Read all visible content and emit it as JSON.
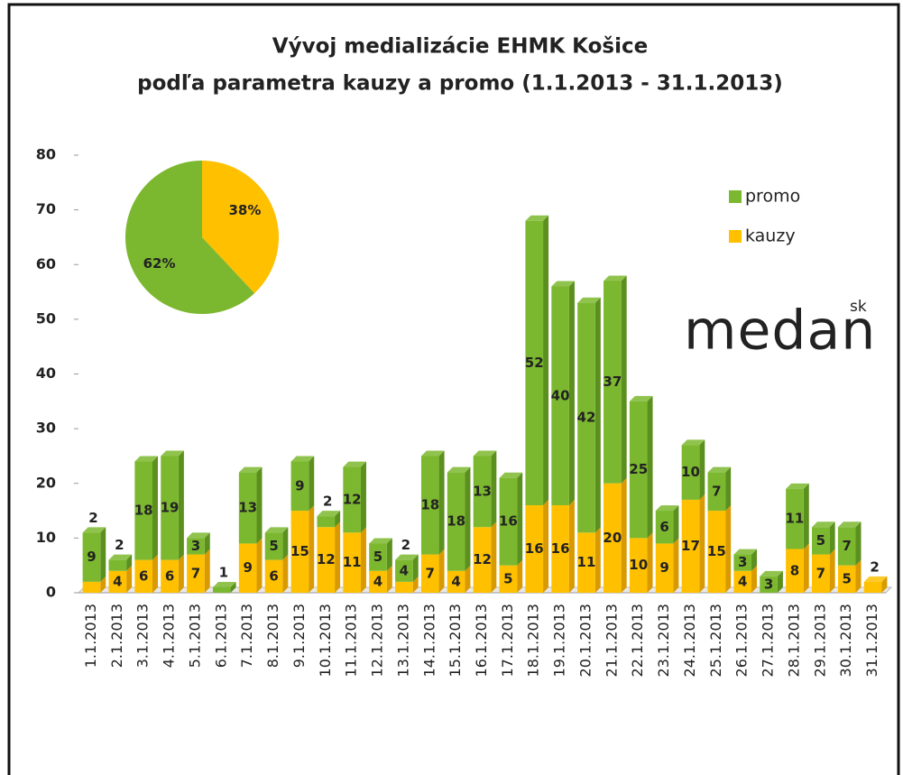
{
  "chart_data": [
    {
      "type": "stacked_bar",
      "title": "Vývoj medializácie EHMK Košice",
      "subtitle": "podľa parametra kauzy a promo (1.1.2013 - 31.1.2013)",
      "categories": [
        "1.1.2013",
        "2.1.2013",
        "3.1.2013",
        "4.1.2013",
        "5.1.2013",
        "6.1.2013",
        "7.1.2013",
        "8.1.2013",
        "9.1.2013",
        "10.1.2013",
        "11.1.2013",
        "12.1.2013",
        "13.1.2013",
        "14.1.2013",
        "15.1.2013",
        "16.1.2013",
        "17.1.2013",
        "18.1.2013",
        "19.1.2013",
        "20.1.2013",
        "21.1.2013",
        "22.1.2013",
        "23.1.2013",
        "24.1.2013",
        "25.1.2013",
        "26.1.2013",
        "27.1.2013",
        "28.1.2013",
        "29.1.2013",
        "30.1.2013",
        "31.1.2013"
      ],
      "series": [
        {
          "name": "kauzy",
          "color": "#ffc000",
          "side_color": "#d89a00",
          "values": [
            2,
            4,
            6,
            6,
            7,
            0,
            9,
            6,
            15,
            12,
            11,
            4,
            2,
            7,
            4,
            12,
            5,
            16,
            16,
            11,
            20,
            10,
            9,
            17,
            15,
            4,
            0,
            8,
            7,
            5,
            2
          ],
          "value_labels": [
            "2",
            "4",
            "6",
            "6",
            "7",
            null,
            "9",
            "6",
            "15",
            "12",
            "11",
            "4",
            "2",
            "7",
            "4",
            "12",
            "5",
            "16",
            "16",
            "11",
            "20",
            "10",
            "9",
            "17",
            "15",
            "4",
            null,
            "8",
            "7",
            "5",
            "2"
          ]
        },
        {
          "name": "promo",
          "color": "#7cb82f",
          "side_color": "#5b8f1e",
          "values": [
            9,
            2,
            18,
            19,
            3,
            1,
            13,
            5,
            9,
            2,
            12,
            5,
            4,
            18,
            18,
            13,
            16,
            52,
            40,
            42,
            37,
            25,
            6,
            10,
            7,
            3,
            3,
            11,
            5,
            7,
            0
          ],
          "value_labels": [
            "9",
            "2",
            "18",
            "19",
            "3",
            "1",
            "13",
            "5",
            "9",
            "2",
            "12",
            "5",
            "4",
            "18",
            "18",
            "13",
            "16",
            "52",
            "40",
            "42",
            "37",
            "25",
            "6",
            "10",
            "7",
            "3",
            "3",
            "11",
            "5",
            "7",
            null
          ]
        }
      ],
      "ylim": [
        0,
        80
      ],
      "yticks": [
        0,
        10,
        20,
        30,
        40,
        50,
        60,
        70,
        80
      ],
      "legend": "upper right",
      "logo": "medan",
      "logo_sup": "sk"
    },
    {
      "type": "pie",
      "labels": [
        "kauzy",
        "promo"
      ],
      "values": [
        38,
        62
      ],
      "value_labels": [
        "38%",
        "62%"
      ],
      "colors": [
        "#ffc000",
        "#7cb82f"
      ]
    }
  ]
}
